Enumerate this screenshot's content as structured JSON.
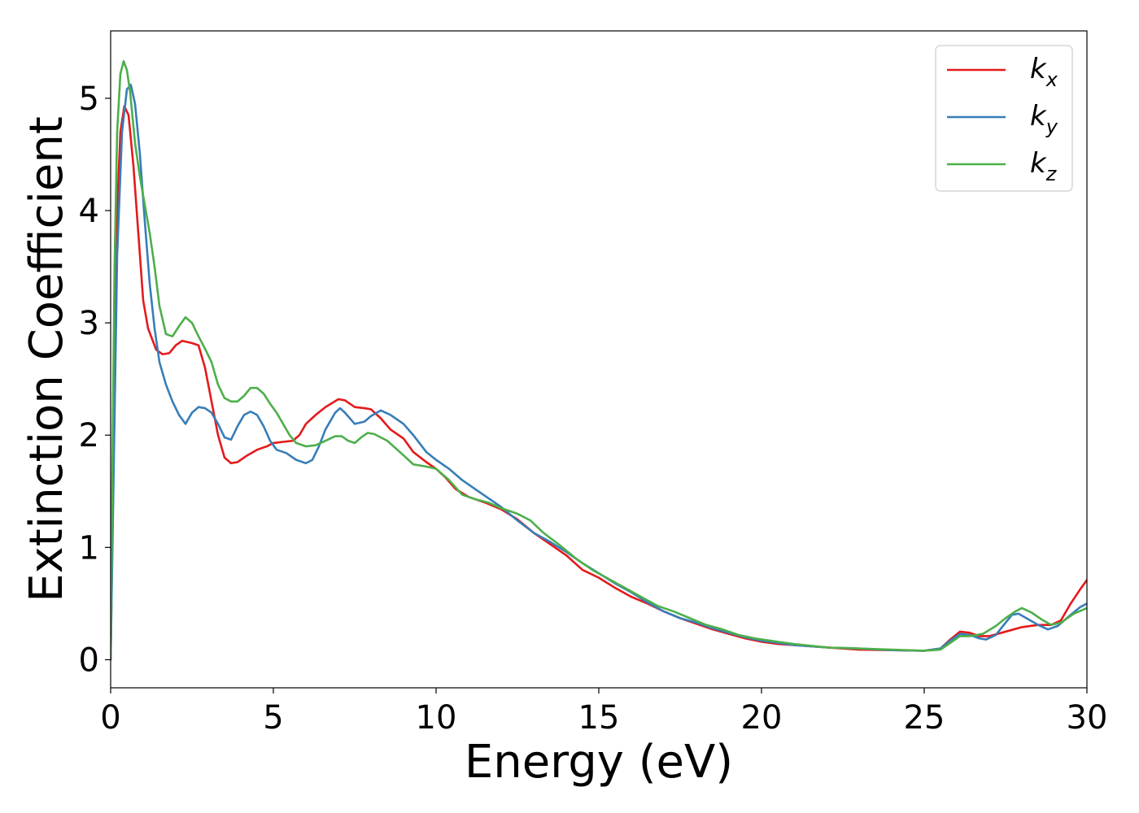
{
  "chart_data": {
    "type": "line",
    "xlabel": "Energy (eV)",
    "ylabel": "Extinction Coefficient",
    "xlim": [
      0,
      30
    ],
    "ylim": [
      -0.25,
      5.6
    ],
    "xticks": [
      0,
      5,
      10,
      15,
      20,
      25,
      30
    ],
    "yticks": [
      0,
      1,
      2,
      3,
      4,
      5
    ],
    "grid": false,
    "legend_position": "top-right",
    "series": [
      {
        "name": "kx",
        "label_base": "k",
        "label_sub": "x",
        "color": "#e41a1c",
        "points": [
          [
            0,
            0
          ],
          [
            0.1,
            2.0
          ],
          [
            0.2,
            4.0
          ],
          [
            0.3,
            4.7
          ],
          [
            0.42,
            4.93
          ],
          [
            0.55,
            4.85
          ],
          [
            0.7,
            4.4
          ],
          [
            0.85,
            3.8
          ],
          [
            1.0,
            3.2
          ],
          [
            1.15,
            2.95
          ],
          [
            1.4,
            2.76
          ],
          [
            1.6,
            2.72
          ],
          [
            1.8,
            2.73
          ],
          [
            2.0,
            2.8
          ],
          [
            2.2,
            2.84
          ],
          [
            2.5,
            2.82
          ],
          [
            2.7,
            2.8
          ],
          [
            2.9,
            2.6
          ],
          [
            3.1,
            2.3
          ],
          [
            3.3,
            2.0
          ],
          [
            3.5,
            1.8
          ],
          [
            3.7,
            1.75
          ],
          [
            3.9,
            1.76
          ],
          [
            4.2,
            1.82
          ],
          [
            4.5,
            1.87
          ],
          [
            4.8,
            1.9
          ],
          [
            5.0,
            1.93
          ],
          [
            5.3,
            1.94
          ],
          [
            5.6,
            1.95
          ],
          [
            5.8,
            2.0
          ],
          [
            6.0,
            2.1
          ],
          [
            6.3,
            2.18
          ],
          [
            6.6,
            2.25
          ],
          [
            7.0,
            2.32
          ],
          [
            7.2,
            2.31
          ],
          [
            7.5,
            2.25
          ],
          [
            7.8,
            2.24
          ],
          [
            8.0,
            2.23
          ],
          [
            8.3,
            2.15
          ],
          [
            8.6,
            2.05
          ],
          [
            9.0,
            1.97
          ],
          [
            9.3,
            1.85
          ],
          [
            9.7,
            1.76
          ],
          [
            10.0,
            1.7
          ],
          [
            10.3,
            1.62
          ],
          [
            10.6,
            1.52
          ],
          [
            11.0,
            1.45
          ],
          [
            11.5,
            1.4
          ],
          [
            12.0,
            1.34
          ],
          [
            12.5,
            1.25
          ],
          [
            13.0,
            1.13
          ],
          [
            13.5,
            1.03
          ],
          [
            14.0,
            0.93
          ],
          [
            14.5,
            0.8
          ],
          [
            15.0,
            0.73
          ],
          [
            15.5,
            0.64
          ],
          [
            16.0,
            0.56
          ],
          [
            16.5,
            0.5
          ],
          [
            17.0,
            0.43
          ],
          [
            17.5,
            0.37
          ],
          [
            18.0,
            0.32
          ],
          [
            18.5,
            0.27
          ],
          [
            19.0,
            0.23
          ],
          [
            19.5,
            0.19
          ],
          [
            20.0,
            0.16
          ],
          [
            20.5,
            0.14
          ],
          [
            21.0,
            0.13
          ],
          [
            22.0,
            0.11
          ],
          [
            23.0,
            0.09
          ],
          [
            24.0,
            0.085
          ],
          [
            25.0,
            0.08
          ],
          [
            25.5,
            0.1
          ],
          [
            25.8,
            0.18
          ],
          [
            26.1,
            0.25
          ],
          [
            26.4,
            0.24
          ],
          [
            26.7,
            0.21
          ],
          [
            27.0,
            0.21
          ],
          [
            27.5,
            0.25
          ],
          [
            28.0,
            0.29
          ],
          [
            28.5,
            0.31
          ],
          [
            28.9,
            0.31
          ],
          [
            29.2,
            0.35
          ],
          [
            29.5,
            0.5
          ],
          [
            29.8,
            0.63
          ],
          [
            30.0,
            0.71
          ]
        ]
      },
      {
        "name": "ky",
        "label_base": "k",
        "label_sub": "y",
        "color": "#377eb8",
        "points": [
          [
            0,
            0
          ],
          [
            0.1,
            1.8
          ],
          [
            0.2,
            3.6
          ],
          [
            0.35,
            4.7
          ],
          [
            0.5,
            5.08
          ],
          [
            0.62,
            5.12
          ],
          [
            0.75,
            4.95
          ],
          [
            0.9,
            4.5
          ],
          [
            1.05,
            3.9
          ],
          [
            1.2,
            3.35
          ],
          [
            1.35,
            2.95
          ],
          [
            1.5,
            2.65
          ],
          [
            1.7,
            2.45
          ],
          [
            1.9,
            2.3
          ],
          [
            2.1,
            2.18
          ],
          [
            2.3,
            2.1
          ],
          [
            2.5,
            2.2
          ],
          [
            2.7,
            2.25
          ],
          [
            2.9,
            2.24
          ],
          [
            3.1,
            2.2
          ],
          [
            3.3,
            2.1
          ],
          [
            3.5,
            1.98
          ],
          [
            3.7,
            1.96
          ],
          [
            3.9,
            2.08
          ],
          [
            4.1,
            2.18
          ],
          [
            4.3,
            2.21
          ],
          [
            4.5,
            2.18
          ],
          [
            4.7,
            2.08
          ],
          [
            4.9,
            1.95
          ],
          [
            5.1,
            1.87
          ],
          [
            5.4,
            1.84
          ],
          [
            5.7,
            1.78
          ],
          [
            6.0,
            1.75
          ],
          [
            6.2,
            1.78
          ],
          [
            6.4,
            1.9
          ],
          [
            6.6,
            2.05
          ],
          [
            6.9,
            2.2
          ],
          [
            7.05,
            2.24
          ],
          [
            7.2,
            2.2
          ],
          [
            7.5,
            2.1
          ],
          [
            7.8,
            2.12
          ],
          [
            8.0,
            2.17
          ],
          [
            8.3,
            2.22
          ],
          [
            8.6,
            2.18
          ],
          [
            9.0,
            2.1
          ],
          [
            9.3,
            2.0
          ],
          [
            9.7,
            1.85
          ],
          [
            10.0,
            1.78
          ],
          [
            10.4,
            1.7
          ],
          [
            10.8,
            1.6
          ],
          [
            11.2,
            1.52
          ],
          [
            11.6,
            1.44
          ],
          [
            12.0,
            1.36
          ],
          [
            12.5,
            1.24
          ],
          [
            13.0,
            1.13
          ],
          [
            13.5,
            1.05
          ],
          [
            14.0,
            0.96
          ],
          [
            14.5,
            0.86
          ],
          [
            15.0,
            0.77
          ],
          [
            15.5,
            0.68
          ],
          [
            16.0,
            0.6
          ],
          [
            16.5,
            0.51
          ],
          [
            17.0,
            0.43
          ],
          [
            17.5,
            0.37
          ],
          [
            18.0,
            0.33
          ],
          [
            18.5,
            0.28
          ],
          [
            19.0,
            0.24
          ],
          [
            19.5,
            0.2
          ],
          [
            20.0,
            0.17
          ],
          [
            21.0,
            0.13
          ],
          [
            22.0,
            0.11
          ],
          [
            23.0,
            0.1
          ],
          [
            24.0,
            0.085
          ],
          [
            25.0,
            0.08
          ],
          [
            25.5,
            0.1
          ],
          [
            25.8,
            0.17
          ],
          [
            26.1,
            0.23
          ],
          [
            26.4,
            0.22
          ],
          [
            26.7,
            0.19
          ],
          [
            26.9,
            0.18
          ],
          [
            27.2,
            0.22
          ],
          [
            27.5,
            0.33
          ],
          [
            27.7,
            0.4
          ],
          [
            27.9,
            0.41
          ],
          [
            28.2,
            0.36
          ],
          [
            28.5,
            0.31
          ],
          [
            28.8,
            0.27
          ],
          [
            29.1,
            0.3
          ],
          [
            29.5,
            0.4
          ],
          [
            29.8,
            0.47
          ],
          [
            30.0,
            0.5
          ]
        ]
      },
      {
        "name": "kz",
        "label_base": "k",
        "label_sub": "z",
        "color": "#4daf4a",
        "points": [
          [
            0,
            0
          ],
          [
            0.05,
            1.6
          ],
          [
            0.12,
            3.5
          ],
          [
            0.2,
            4.7
          ],
          [
            0.3,
            5.22
          ],
          [
            0.4,
            5.33
          ],
          [
            0.5,
            5.25
          ],
          [
            0.6,
            5.05
          ],
          [
            0.75,
            4.6
          ],
          [
            0.9,
            4.3
          ],
          [
            1.05,
            4.05
          ],
          [
            1.2,
            3.8
          ],
          [
            1.35,
            3.5
          ],
          [
            1.5,
            3.15
          ],
          [
            1.7,
            2.9
          ],
          [
            1.9,
            2.88
          ],
          [
            2.1,
            2.97
          ],
          [
            2.3,
            3.05
          ],
          [
            2.5,
            3.0
          ],
          [
            2.7,
            2.88
          ],
          [
            2.9,
            2.77
          ],
          [
            3.1,
            2.65
          ],
          [
            3.3,
            2.45
          ],
          [
            3.5,
            2.33
          ],
          [
            3.7,
            2.3
          ],
          [
            3.9,
            2.3
          ],
          [
            4.1,
            2.35
          ],
          [
            4.3,
            2.42
          ],
          [
            4.5,
            2.42
          ],
          [
            4.7,
            2.37
          ],
          [
            4.9,
            2.28
          ],
          [
            5.1,
            2.2
          ],
          [
            5.3,
            2.1
          ],
          [
            5.5,
            2.0
          ],
          [
            5.7,
            1.93
          ],
          [
            6.0,
            1.9
          ],
          [
            6.3,
            1.91
          ],
          [
            6.6,
            1.95
          ],
          [
            6.9,
            1.99
          ],
          [
            7.1,
            1.99
          ],
          [
            7.3,
            1.95
          ],
          [
            7.5,
            1.93
          ],
          [
            7.7,
            1.98
          ],
          [
            7.9,
            2.02
          ],
          [
            8.1,
            2.01
          ],
          [
            8.5,
            1.95
          ],
          [
            9.0,
            1.82
          ],
          [
            9.3,
            1.74
          ],
          [
            9.7,
            1.72
          ],
          [
            10.0,
            1.7
          ],
          [
            10.4,
            1.6
          ],
          [
            10.8,
            1.47
          ],
          [
            11.2,
            1.43
          ],
          [
            11.6,
            1.4
          ],
          [
            12.0,
            1.35
          ],
          [
            12.5,
            1.3
          ],
          [
            12.9,
            1.24
          ],
          [
            13.3,
            1.13
          ],
          [
            13.8,
            1.02
          ],
          [
            14.3,
            0.9
          ],
          [
            14.8,
            0.8
          ],
          [
            15.3,
            0.72
          ],
          [
            15.8,
            0.64
          ],
          [
            16.3,
            0.56
          ],
          [
            16.8,
            0.48
          ],
          [
            17.3,
            0.43
          ],
          [
            17.8,
            0.37
          ],
          [
            18.3,
            0.31
          ],
          [
            18.8,
            0.27
          ],
          [
            19.3,
            0.22
          ],
          [
            19.8,
            0.19
          ],
          [
            20.5,
            0.16
          ],
          [
            21.0,
            0.14
          ],
          [
            22.0,
            0.11
          ],
          [
            23.0,
            0.1
          ],
          [
            24.0,
            0.09
          ],
          [
            25.0,
            0.08
          ],
          [
            25.5,
            0.09
          ],
          [
            25.8,
            0.15
          ],
          [
            26.1,
            0.21
          ],
          [
            26.4,
            0.21
          ],
          [
            26.8,
            0.23
          ],
          [
            27.2,
            0.3
          ],
          [
            27.5,
            0.37
          ],
          [
            27.8,
            0.43
          ],
          [
            28.0,
            0.46
          ],
          [
            28.3,
            0.42
          ],
          [
            28.6,
            0.36
          ],
          [
            28.9,
            0.31
          ],
          [
            29.2,
            0.33
          ],
          [
            29.6,
            0.41
          ],
          [
            30.0,
            0.46
          ]
        ]
      }
    ]
  }
}
